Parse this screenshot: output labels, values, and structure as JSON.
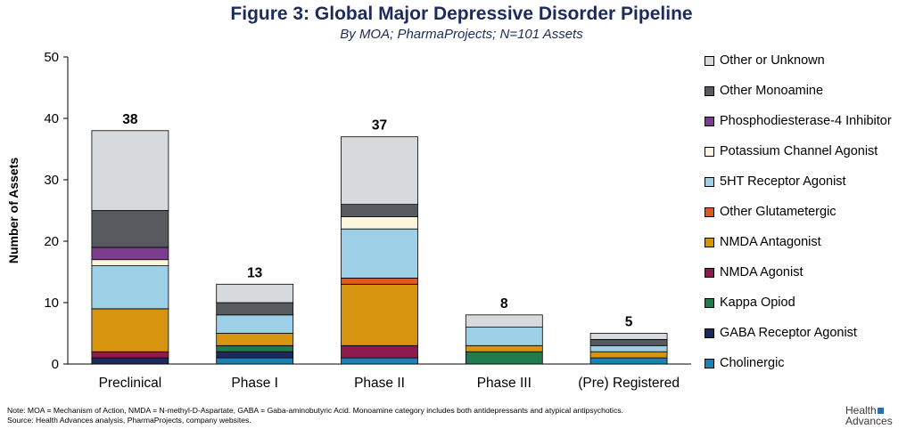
{
  "title": "Figure 3: Global Major Depressive Disorder Pipeline",
  "subtitle": "By MOA; PharmaProjects; N=101 Assets",
  "chart_data": {
    "type": "bar",
    "stacked": true,
    "ylabel": "Number of Assets",
    "xlabel": "",
    "ylim": [
      0,
      50
    ],
    "yticks": [
      0,
      10,
      20,
      30,
      40,
      50
    ],
    "categories": [
      "Preclinical",
      "Phase I",
      "Phase II",
      "Phase III",
      "(Pre) Registered"
    ],
    "totals": [
      38,
      13,
      37,
      8,
      5
    ],
    "legend_position": "right",
    "series": [
      {
        "name": "Cholinergic",
        "color": "#1c80b4",
        "values": [
          0,
          1,
          1,
          0,
          1
        ]
      },
      {
        "name": "GABA Receptor Agonist",
        "color": "#1e2a5e",
        "values": [
          1,
          1,
          0,
          0,
          0
        ]
      },
      {
        "name": "Kappa Opiod",
        "color": "#1f7a4c",
        "values": [
          0,
          1,
          0,
          2,
          0
        ]
      },
      {
        "name": "NMDA Agonist",
        "color": "#8e1a4e",
        "values": [
          1,
          0,
          2,
          0,
          0
        ]
      },
      {
        "name": "NMDA Antagonist",
        "color": "#d7950f",
        "values": [
          7,
          2,
          10,
          1,
          1
        ]
      },
      {
        "name": "Other Glutametergic",
        "color": "#e0581e",
        "values": [
          0,
          0,
          1,
          0,
          0
        ]
      },
      {
        "name": "5HT Receptor Agonist",
        "color": "#9dcfe6",
        "values": [
          7,
          3,
          8,
          3,
          1
        ]
      },
      {
        "name": "Potassium Channel Agonist",
        "color": "#fbf6dc",
        "values": [
          1,
          0,
          2,
          0,
          0
        ]
      },
      {
        "name": "Phosphodiesterase-4 Inhibitor",
        "color": "#7d3d8e",
        "values": [
          2,
          0,
          0,
          0,
          0
        ]
      },
      {
        "name": "Other Monoamine",
        "color": "#575b60",
        "values": [
          6,
          2,
          2,
          0,
          1
        ]
      },
      {
        "name": "Other or Unknown",
        "color": "#d7dadd",
        "values": [
          13,
          3,
          11,
          2,
          1
        ]
      }
    ]
  },
  "notes": {
    "note": "Note:  MOA = Mechanism of Action, NMDA = N-methyl-D-Aspartate, GABA = Gaba-aminobutyric Acid. Monoamine category includes both antidepressants and atypical antipsychotics.",
    "source": "Source:  Health Advances analysis, PharmaProjects, company websites."
  },
  "logo": {
    "line1": "Health",
    "line2": "Advances"
  }
}
